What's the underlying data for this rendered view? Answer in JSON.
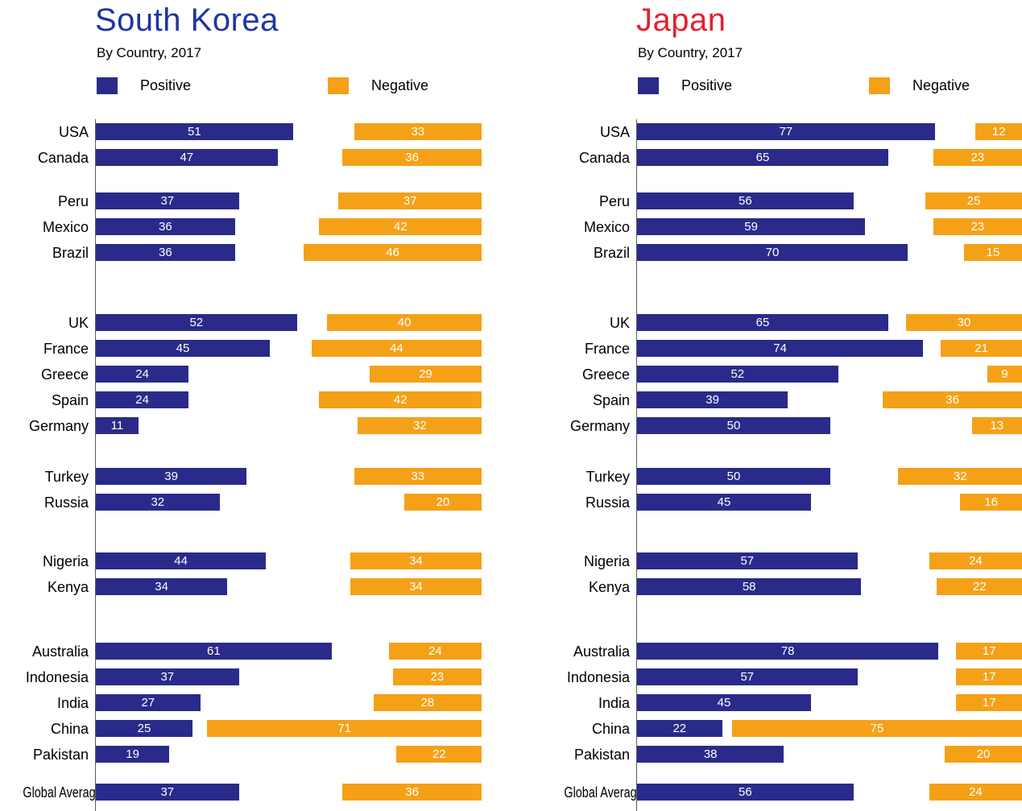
{
  "chart_data": [
    {
      "type": "bar",
      "orientation": "horizontal",
      "title": "South Korea",
      "title_color": "#1F35A3",
      "subtitle": "By Country, 2017",
      "legend": [
        "Positive",
        "Negative"
      ],
      "legend_position": "top",
      "grid": false,
      "xlim": [
        0,
        100
      ],
      "negative_bars_right_aligned": true,
      "categories": [
        "USA",
        "Canada",
        "Peru",
        "Mexico",
        "Brazil",
        "UK",
        "France",
        "Greece",
        "Spain",
        "Germany",
        "Turkey",
        "Russia",
        "Nigeria",
        "Kenya",
        "Australia",
        "Indonesia",
        "India",
        "China",
        "Pakistan",
        "Global Average"
      ],
      "groups": [
        2,
        3,
        5,
        2,
        2,
        5,
        1
      ],
      "series": [
        {
          "name": "Positive",
          "color": "#2A2A8A",
          "values": [
            51,
            47,
            37,
            36,
            36,
            52,
            45,
            24,
            24,
            11,
            39,
            32,
            44,
            34,
            61,
            37,
            27,
            25,
            19,
            37
          ]
        },
        {
          "name": "Negative",
          "color": "#F5A118",
          "values": [
            33,
            36,
            37,
            42,
            46,
            40,
            44,
            29,
            42,
            32,
            33,
            20,
            34,
            34,
            24,
            23,
            28,
            71,
            22,
            36
          ]
        }
      ]
    },
    {
      "type": "bar",
      "orientation": "horizontal",
      "title": "Japan",
      "title_color": "#E61F2D",
      "subtitle": "By Country, 2017",
      "legend": [
        "Positive",
        "Negative"
      ],
      "legend_position": "top",
      "grid": false,
      "xlim": [
        0,
        100
      ],
      "negative_bars_right_aligned": true,
      "categories": [
        "USA",
        "Canada",
        "Peru",
        "Mexico",
        "Brazil",
        "UK",
        "France",
        "Greece",
        "Spain",
        "Germany",
        "Turkey",
        "Russia",
        "Nigeria",
        "Kenya",
        "Australia",
        "Indonesia",
        "India",
        "China",
        "Pakistan",
        "Global Average"
      ],
      "groups": [
        2,
        3,
        5,
        2,
        2,
        5,
        1
      ],
      "series": [
        {
          "name": "Positive",
          "color": "#2A2A8A",
          "values": [
            77,
            65,
            56,
            59,
            70,
            65,
            74,
            52,
            39,
            50,
            50,
            45,
            57,
            58,
            78,
            57,
            45,
            22,
            38,
            56
          ]
        },
        {
          "name": "Negative",
          "color": "#F5A118",
          "values": [
            12,
            23,
            25,
            23,
            15,
            30,
            21,
            9,
            36,
            13,
            32,
            16,
            24,
            22,
            17,
            17,
            17,
            75,
            20,
            24
          ]
        }
      ]
    }
  ],
  "colors": {
    "axis": "#5a5a5a",
    "bar_value_text": "#ffffff"
  }
}
